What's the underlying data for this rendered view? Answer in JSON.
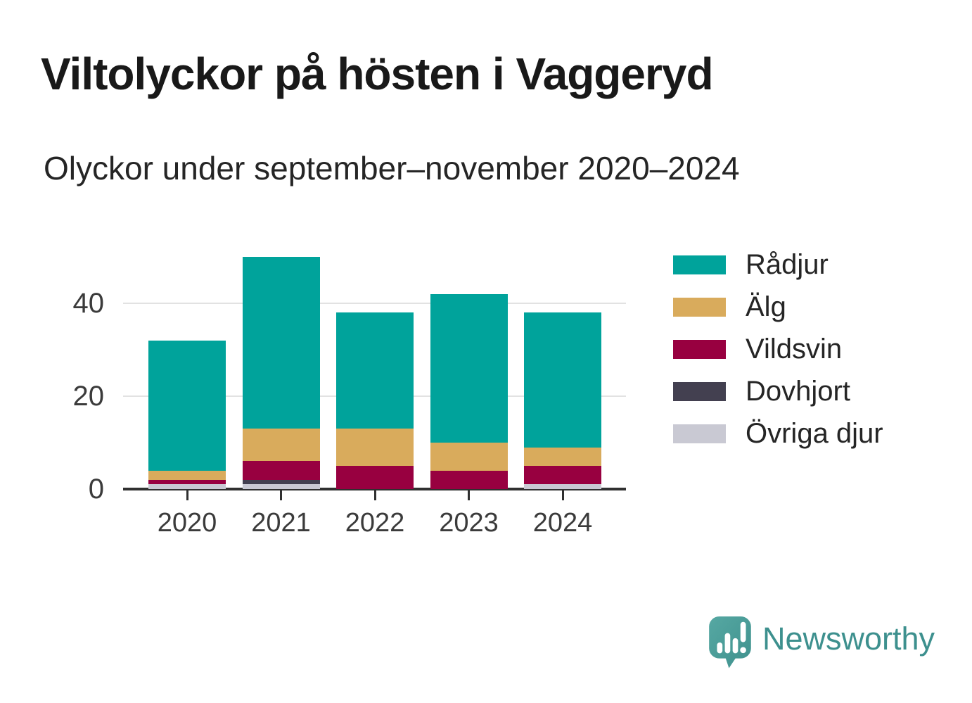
{
  "chart_data": {
    "type": "bar",
    "stacked": true,
    "title": "Viltolyckor på hösten i Vaggeryd",
    "subtitle": "Olyckor under september–november 2020–2024",
    "categories": [
      "2020",
      "2021",
      "2022",
      "2023",
      "2024"
    ],
    "series": [
      {
        "name": "Rådjur",
        "color": "#00a39b",
        "values": [
          28,
          37,
          25,
          32,
          29
        ]
      },
      {
        "name": "Älg",
        "color": "#d9ab5c",
        "values": [
          2,
          7,
          8,
          6,
          4
        ]
      },
      {
        "name": "Vildsvin",
        "color": "#980040",
        "values": [
          1,
          4,
          5,
          4,
          4
        ]
      },
      {
        "name": "Dovhjort",
        "color": "#434050",
        "values": [
          0,
          1,
          0,
          0,
          0
        ]
      },
      {
        "name": "Övriga djur",
        "color": "#c9c9d3",
        "values": [
          1,
          1,
          0,
          0,
          1
        ]
      }
    ],
    "stack_order_bottom_to_top": [
      "Övriga djur",
      "Dovhjort",
      "Vildsvin",
      "Älg",
      "Rådjur"
    ],
    "totals": [
      32,
      50,
      38,
      42,
      38
    ],
    "ylim": [
      0,
      50
    ],
    "yticks": [
      0,
      20,
      40
    ],
    "grid": "horizontal",
    "legend_position": "right",
    "colors": {
      "gridline": "#e2e2e2",
      "axis": "#303030",
      "tick_text": "#3b3b3b"
    }
  },
  "branding": {
    "logo_text": "Newsworthy",
    "logo_icon": "newsworthy-speech-bubble-bar-chart-icon",
    "logo_text_color": "#3d908e",
    "logo_mark_color": "#4a9d9a"
  }
}
